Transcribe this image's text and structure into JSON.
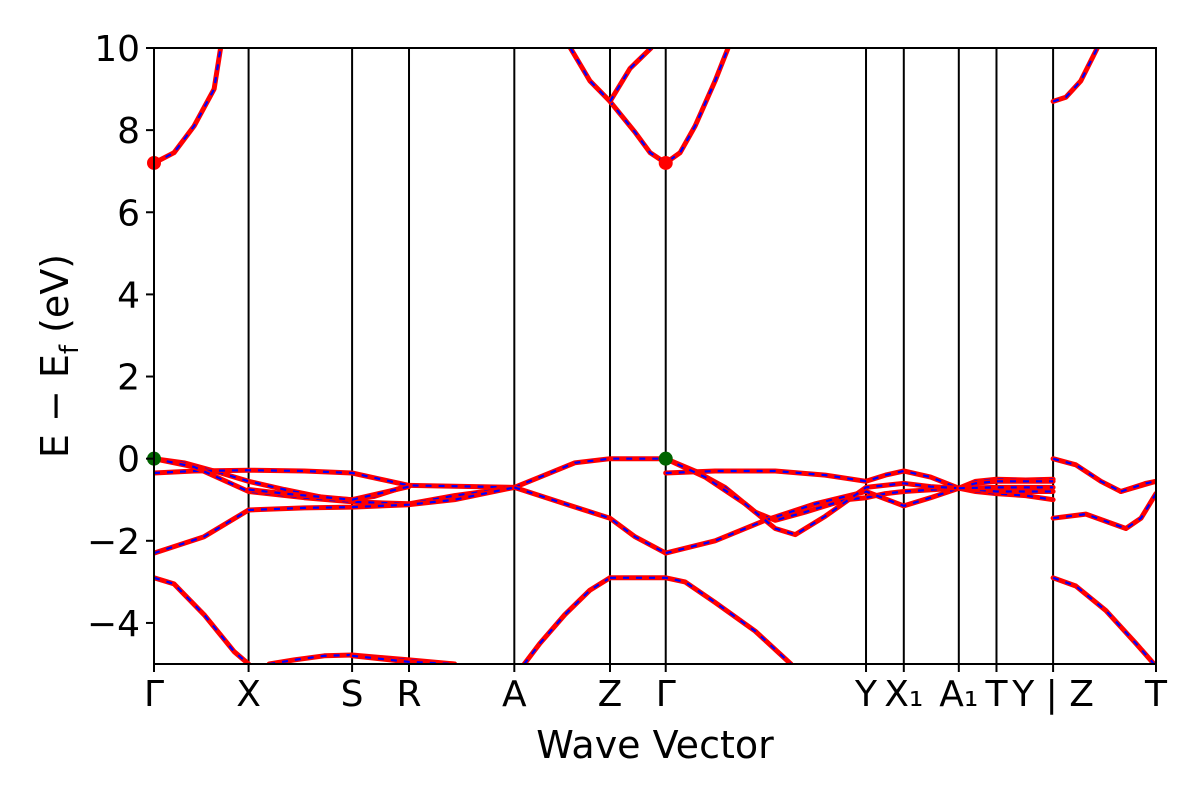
{
  "chart_data": {
    "type": "line",
    "title": "",
    "xlabel": "Wave Vector",
    "ylabel": "E − E_f (eV)",
    "ylabel_main": "E − E",
    "ylabel_sub": "f",
    "ylabel_tail": " (eV)",
    "ylim": [
      -5,
      10
    ],
    "xlim": [
      0,
      1
    ],
    "yticks": [
      -4,
      -2,
      0,
      2,
      4,
      6,
      8,
      10
    ],
    "yticklabels": [
      "−4",
      "−2",
      "0",
      "2",
      "4",
      "6",
      "8",
      "10"
    ],
    "kpoints": [
      {
        "label": "Γ",
        "x": 0.0
      },
      {
        "label": "X",
        "x": 0.0944
      },
      {
        "label": "S",
        "x": 0.1977
      },
      {
        "label": "R",
        "x": 0.2545
      },
      {
        "label": "A",
        "x": 0.3596
      },
      {
        "label": "Z",
        "x": 0.4551
      },
      {
        "label": "Γ",
        "x": 0.5107
      },
      {
        "label": "Y",
        "x": 0.7106
      },
      {
        "label": "X₁",
        "x": 0.7483
      },
      {
        "label": "A₁",
        "x": 0.8032
      },
      {
        "label": "T",
        "x": 0.8408
      },
      {
        "label": "Y | Z",
        "x": 0.8973
      },
      {
        "label": "T",
        "x": 1.0
      }
    ],
    "series_style": {
      "solid_color": "#ff0000",
      "dashed_color": "#0000ff"
    },
    "bands": [
      [
        [
          0.0,
          7.2
        ],
        [
          0.02,
          7.45
        ],
        [
          0.04,
          8.1
        ],
        [
          0.06,
          9.0
        ],
        [
          0.0665,
          10.0
        ]
      ],
      [
        [
          0.4156,
          10.0
        ],
        [
          0.435,
          9.2
        ],
        [
          0.4551,
          8.7
        ],
        [
          0.48,
          7.95
        ],
        [
          0.4951,
          7.45
        ],
        [
          0.5107,
          7.2
        ],
        [
          0.525,
          7.45
        ],
        [
          0.54,
          8.1
        ],
        [
          0.56,
          9.2
        ],
        [
          0.573,
          10.0
        ]
      ],
      [
        [
          0.4551,
          8.7
        ],
        [
          0.475,
          9.5
        ],
        [
          0.4961,
          10.0
        ]
      ],
      [
        [
          0.8973,
          8.7
        ],
        [
          0.91,
          8.8
        ],
        [
          0.925,
          9.2
        ],
        [
          0.9414,
          10.0
        ]
      ],
      [
        [
          0.0,
          0.0
        ],
        [
          0.03,
          -0.1
        ],
        [
          0.06,
          -0.3
        ],
        [
          0.0944,
          -0.55
        ],
        [
          0.13,
          -0.75
        ],
        [
          0.17,
          -0.95
        ],
        [
          0.1977,
          -1.0
        ],
        [
          0.22,
          -0.92
        ],
        [
          0.2545,
          -0.65
        ]
      ],
      [
        [
          0.0,
          -0.35
        ],
        [
          0.04,
          -0.3
        ],
        [
          0.0944,
          -0.28
        ],
        [
          0.15,
          -0.3
        ],
        [
          0.1977,
          -0.35
        ],
        [
          0.2545,
          -0.65
        ],
        [
          0.3,
          -0.67
        ],
        [
          0.3596,
          -0.7
        ]
      ],
      [
        [
          0.0,
          0.0
        ],
        [
          0.04,
          -0.2
        ],
        [
          0.0944,
          -0.8
        ],
        [
          0.15,
          -0.95
        ],
        [
          0.1977,
          -1.05
        ],
        [
          0.2545,
          -1.1
        ],
        [
          0.3,
          -0.9
        ],
        [
          0.3596,
          -0.7
        ]
      ],
      [
        [
          0.0,
          -2.3
        ],
        [
          0.05,
          -1.9
        ],
        [
          0.0944,
          -1.25
        ],
        [
          0.15,
          -1.2
        ],
        [
          0.1977,
          -1.18
        ],
        [
          0.2545,
          -1.12
        ],
        [
          0.3,
          -1.0
        ],
        [
          0.3596,
          -0.7
        ]
      ],
      [
        [
          0.0944,
          -0.75
        ],
        [
          0.13,
          -0.85
        ],
        [
          0.1977,
          -1.0
        ],
        [
          0.2545,
          -0.68
        ]
      ],
      [
        [
          0.3596,
          -0.7
        ],
        [
          0.39,
          -0.4
        ],
        [
          0.42,
          -0.1
        ],
        [
          0.4551,
          0.0
        ],
        [
          0.49,
          0.0
        ],
        [
          0.5107,
          0.0
        ]
      ],
      [
        [
          0.3596,
          -0.7
        ],
        [
          0.41,
          -1.1
        ],
        [
          0.4551,
          -1.45
        ],
        [
          0.48,
          -1.9
        ],
        [
          0.5107,
          -2.3
        ]
      ],
      [
        [
          0.5107,
          0.0
        ],
        [
          0.54,
          -0.3
        ],
        [
          0.57,
          -0.7
        ],
        [
          0.6,
          -1.3
        ],
        [
          0.62,
          -1.5
        ],
        [
          0.65,
          -1.3
        ],
        [
          0.69,
          -1.0
        ],
        [
          0.7106,
          -0.95
        ],
        [
          0.73,
          -0.85
        ],
        [
          0.7483,
          -0.8
        ],
        [
          0.78,
          -0.75
        ],
        [
          0.8032,
          -0.72
        ]
      ],
      [
        [
          0.5107,
          -0.35
        ],
        [
          0.56,
          -0.3
        ],
        [
          0.62,
          -0.3
        ],
        [
          0.67,
          -0.4
        ],
        [
          0.7106,
          -0.55
        ],
        [
          0.73,
          -0.4
        ],
        [
          0.7483,
          -0.3
        ],
        [
          0.775,
          -0.45
        ],
        [
          0.8032,
          -0.72
        ],
        [
          0.82,
          -0.55
        ],
        [
          0.8408,
          -0.5
        ],
        [
          0.87,
          -0.52
        ],
        [
          0.8973,
          -0.5
        ]
      ],
      [
        [
          0.5107,
          -2.3
        ],
        [
          0.56,
          -2.0
        ],
        [
          0.61,
          -1.5
        ],
        [
          0.66,
          -1.1
        ],
        [
          0.7106,
          -0.8
        ],
        [
          0.7483,
          -1.15
        ],
        [
          0.775,
          -0.95
        ],
        [
          0.8032,
          -0.72
        ],
        [
          0.82,
          -0.8
        ],
        [
          0.8408,
          -0.85
        ],
        [
          0.87,
          -0.9
        ],
        [
          0.8973,
          -1.0
        ]
      ],
      [
        [
          0.5107,
          0.0
        ],
        [
          0.55,
          -0.45
        ],
        [
          0.59,
          -1.1
        ],
        [
          0.62,
          -1.7
        ],
        [
          0.64,
          -1.85
        ],
        [
          0.67,
          -1.4
        ],
        [
          0.7106,
          -0.7
        ],
        [
          0.7483,
          -0.6
        ],
        [
          0.775,
          -0.68
        ],
        [
          0.8032,
          -0.72
        ],
        [
          0.8408,
          -0.8
        ],
        [
          0.8973,
          -0.8
        ]
      ],
      [
        [
          0.8032,
          -0.72
        ],
        [
          0.82,
          -0.6
        ],
        [
          0.8408,
          -0.55
        ],
        [
          0.8973,
          -0.55
        ]
      ],
      [
        [
          0.8032,
          -0.72
        ],
        [
          0.8408,
          -0.7
        ],
        [
          0.8973,
          -0.7
        ]
      ],
      [
        [
          0.0,
          -2.9
        ],
        [
          0.02,
          -3.05
        ],
        [
          0.05,
          -3.8
        ],
        [
          0.08,
          -4.7
        ],
        [
          0.0944,
          -5.0
        ]
      ],
      [
        [
          0.4551,
          -2.9
        ],
        [
          0.4351,
          -3.2
        ],
        [
          0.41,
          -3.8
        ],
        [
          0.385,
          -4.5
        ],
        [
          0.3696,
          -5.0
        ]
      ],
      [
        [
          0.4551,
          -2.9
        ],
        [
          0.5107,
          -2.9
        ],
        [
          0.53,
          -3.0
        ],
        [
          0.56,
          -3.5
        ],
        [
          0.6,
          -4.2
        ],
        [
          0.6356,
          -5.0
        ]
      ],
      [
        [
          0.115,
          -5.0
        ],
        [
          0.14,
          -4.9
        ],
        [
          0.17,
          -4.8
        ],
        [
          0.1977,
          -4.78
        ],
        [
          0.2545,
          -4.9
        ],
        [
          0.3,
          -5.0
        ]
      ],
      [
        [
          0.1977,
          -4.8
        ],
        [
          0.2545,
          -4.95
        ],
        [
          0.3,
          -5.0
        ]
      ],
      [
        [
          0.8973,
          0.0
        ],
        [
          0.92,
          -0.15
        ],
        [
          0.945,
          -0.55
        ],
        [
          0.965,
          -0.8
        ],
        [
          1.0,
          -0.55
        ]
      ],
      [
        [
          0.965,
          -0.8
        ],
        [
          0.99,
          -0.6
        ],
        [
          1.0,
          -0.55
        ]
      ],
      [
        [
          0.8973,
          -1.45
        ],
        [
          0.93,
          -1.35
        ],
        [
          0.97,
          -1.7
        ],
        [
          0.985,
          -1.45
        ],
        [
          1.0,
          -0.85
        ]
      ],
      [
        [
          0.8973,
          -2.9
        ],
        [
          0.92,
          -3.1
        ],
        [
          0.95,
          -3.7
        ],
        [
          0.98,
          -4.5
        ],
        [
          0.998,
          -5.0
        ]
      ]
    ],
    "markers": [
      {
        "x": 0.0,
        "y": 7.2,
        "color": "#ff0000"
      },
      {
        "x": 0.5107,
        "y": 7.2,
        "color": "#ff0000"
      },
      {
        "x": 0.0,
        "y": 0.0,
        "color": "#006400"
      },
      {
        "x": 0.5107,
        "y": 0.0,
        "color": "#006400"
      }
    ]
  }
}
